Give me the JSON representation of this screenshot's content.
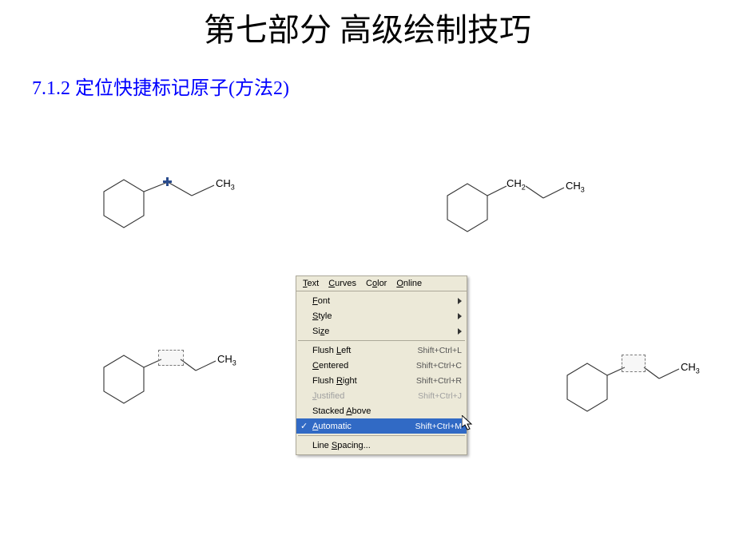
{
  "title": "第七部分 高级绘制技巧",
  "subtitle": "7.1.2 定位快捷标记原子(方法2)",
  "labels": {
    "ch3": "CH",
    "ch3_sub": "3",
    "ch2": "CH",
    "ch2_sub": "2"
  },
  "menu": {
    "bar": [
      "Text",
      "Curves",
      "Color",
      "Online"
    ],
    "bar_underline_idx": [
      0,
      0,
      1,
      0
    ],
    "items": [
      {
        "label": "Font",
        "type": "submenu",
        "ul": 0
      },
      {
        "label": "Style",
        "type": "submenu",
        "ul": 0
      },
      {
        "label": "Size",
        "type": "submenu",
        "ul": 2
      },
      {
        "type": "sep"
      },
      {
        "label": "Flush Left",
        "shortcut": "Shift+Ctrl+L",
        "ul": 6
      },
      {
        "label": "Centered",
        "shortcut": "Shift+Ctrl+C",
        "ul": 0
      },
      {
        "label": "Flush Right",
        "shortcut": "Shift+Ctrl+R",
        "ul": 6
      },
      {
        "label": "Justified",
        "shortcut": "Shift+Ctrl+J",
        "disabled": true,
        "ul": 0
      },
      {
        "label": "Stacked Above",
        "ul": 8
      },
      {
        "label": "Automatic",
        "shortcut": "Shift+Ctrl+M",
        "highlight": true,
        "checked": true,
        "ul": 0
      },
      {
        "type": "sep"
      },
      {
        "label": "Line Spacing...",
        "ul": 5
      }
    ]
  },
  "colors": {
    "title": "#000000",
    "subtitle": "#0000ff",
    "menu_bg": "#ece9d8",
    "menu_border": "#aca899",
    "menu_highlight": "#316ac5",
    "bond": "#333333"
  },
  "structures": {
    "bond_color": "#333333",
    "bond_width": 1.1
  }
}
